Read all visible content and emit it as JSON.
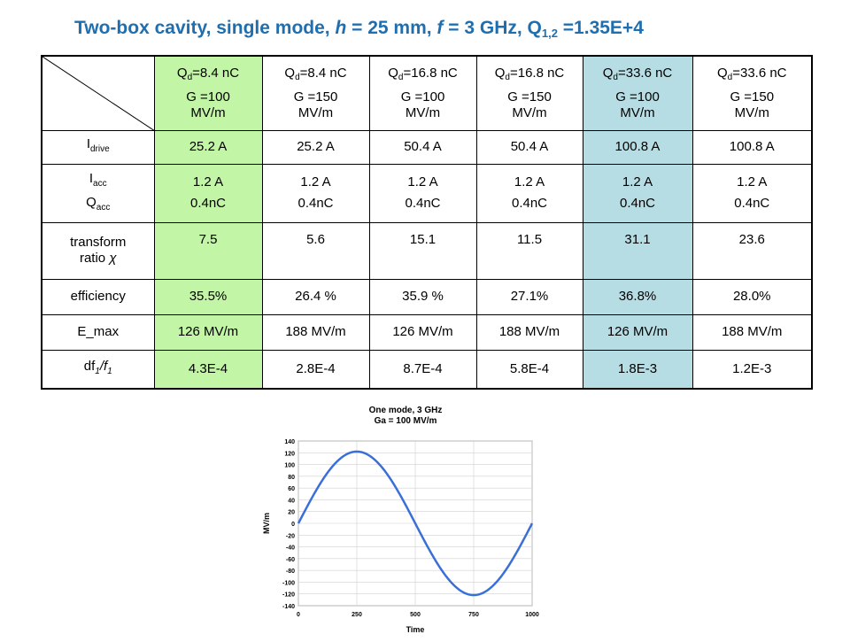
{
  "title": {
    "prefix": "Two-box cavity, single mode,  ",
    "h_var": "h",
    "h_val": " = 25 mm, ",
    "f_var": "f",
    "f_val": " = 3 GHz, Q",
    "q_sub": "1,2",
    "q_val": " =1.35E+4"
  },
  "table": {
    "columns": [
      {
        "q_sym": "Q",
        "q_sub": "d",
        "q_val": "=8.4 nC",
        "g_line1": "G =100",
        "g_line2": "MV/m",
        "color": "#c3f5a6"
      },
      {
        "q_sym": "Q",
        "q_sub": "d",
        "q_val": "=8.4 nC",
        "g_line1": "G =150",
        "g_line2": "MV/m",
        "color": "#ffffff"
      },
      {
        "q_sym": "Q",
        "q_sub": "d",
        "q_val": "=16.8 nC",
        "g_line1": "G =100",
        "g_line2": "MV/m",
        "color": "#ffffff"
      },
      {
        "q_sym": "Q",
        "q_sub": "d",
        "q_val": "=16.8 nC",
        "g_line1": "G =150",
        "g_line2": "MV/m",
        "color": "#ffffff"
      },
      {
        "q_sym": "Q",
        "q_sub": "d",
        "q_val": "=33.6 nC",
        "g_line1": "G =100",
        "g_line2": "MV/m",
        "color": "#b7dde4"
      },
      {
        "q_sym": "Q",
        "q_sub": "d",
        "q_val": "=33.6 nC",
        "g_line1": "G =150",
        "g_line2": "MV/m",
        "color": "#ffffff"
      }
    ],
    "rows": {
      "idrive": {
        "label_main": "I",
        "label_sub": "drive",
        "values": [
          "25.2 A",
          "25.2 A",
          "50.4 A",
          "50.4 A",
          "100.8 A",
          "100.8 A"
        ]
      },
      "iacc": {
        "label1_main": "I",
        "label1_sub": "acc",
        "label2_main": "Q",
        "label2_sub": "acc",
        "values": [
          {
            "a": "1.2 A",
            "b": "0.4nC"
          },
          {
            "a": "1.2 A",
            "b": "0.4nC"
          },
          {
            "a": "1.2 A",
            "b": "0.4nC"
          },
          {
            "a": "1.2 A",
            "b": "0.4nC"
          },
          {
            "a": "1.2 A",
            "b": "0.4nC"
          },
          {
            "a": "1.2 A",
            "b": "0.4nC"
          }
        ]
      },
      "transform": {
        "label_line1": "transform",
        "label_line2": "ratio ",
        "label_symbol": "χ",
        "values": [
          "7.5",
          "5.6",
          "15.1",
          "11.5",
          "31.1",
          "23.6"
        ]
      },
      "efficiency": {
        "label": "efficiency",
        "values": [
          "35.5%",
          "26.4 %",
          "35.9 %",
          "27.1%",
          "36.8%",
          "28.0%"
        ]
      },
      "emax": {
        "label": "E_max",
        "values": [
          "126 MV/m",
          "188 MV/m",
          "126 MV/m",
          "188 MV/m",
          "126 MV/m",
          "188 MV/m"
        ]
      },
      "df": {
        "label_a": "df",
        "label_a_sub": "1",
        "label_b": "/f",
        "label_b_sub": "1",
        "values": [
          "4.3E-4",
          "2.8E-4",
          "8.7E-4",
          "5.8E-4",
          "1.8E-3",
          "1.2E-3"
        ]
      }
    }
  },
  "chart_data": {
    "type": "line",
    "title": "One mode, 3 GHz",
    "subtitle": "Ga = 100 MV/m",
    "xlabel": "Time",
    "ylabel": "MV/m",
    "xlim": [
      0,
      1000
    ],
    "ylim": [
      -140,
      140
    ],
    "x_ticks": [
      "0",
      "250",
      "500",
      "750",
      "1000"
    ],
    "y_ticks": [
      "140",
      "120",
      "100",
      "80",
      "60",
      "40",
      "20",
      "0",
      "-20",
      "-40",
      "-60",
      "-80",
      "-100",
      "-120",
      "-140"
    ],
    "series": [
      {
        "color": "#3b6fd8",
        "x": [
          0,
          50,
          100,
          150,
          200,
          250,
          300,
          350,
          400,
          450,
          500,
          550,
          600,
          650,
          700,
          750,
          800,
          850,
          900,
          950,
          1000
        ],
        "y": [
          0,
          38,
          72,
          99,
          116,
          122,
          116,
          99,
          72,
          38,
          0,
          -38,
          -72,
          -99,
          -116,
          -122,
          -116,
          -99,
          -72,
          -38,
          0
        ]
      }
    ]
  }
}
